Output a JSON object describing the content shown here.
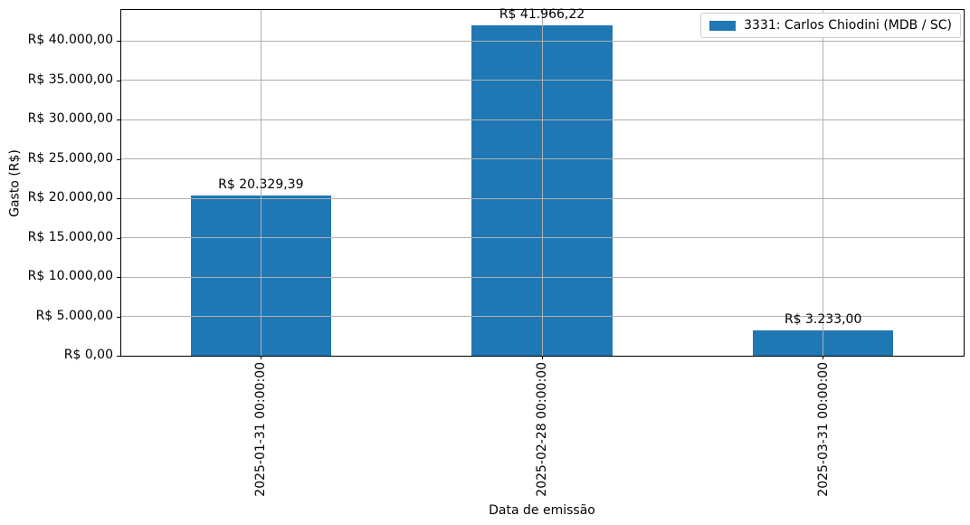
{
  "figure": {
    "background": "#ffffff"
  },
  "chart_data": {
    "type": "bar",
    "title": "",
    "xlabel": "Data de emissão",
    "ylabel": "Gasto (R$)",
    "categories": [
      "2025-01-31 00:00:00",
      "2025-02-28 00:00:00",
      "2025-03-31 00:00:00"
    ],
    "series": [
      {
        "name": "3331: Carlos Chiodini (MDB / SC)",
        "color": "#1f77b4",
        "values": [
          20329.39,
          41966.22,
          3233.0
        ]
      }
    ],
    "bar_value_labels": [
      "R$ 20.329,39",
      "R$ 41.966,22",
      "R$ 3.233,00"
    ],
    "y_ticks": [
      {
        "value": 0,
        "label": "R$ 0,00"
      },
      {
        "value": 5000,
        "label": "R$ 5.000,00"
      },
      {
        "value": 10000,
        "label": "R$ 10.000,00"
      },
      {
        "value": 15000,
        "label": "R$ 15.000,00"
      },
      {
        "value": 20000,
        "label": "R$ 20.000,00"
      },
      {
        "value": 25000,
        "label": "R$ 25.000,00"
      },
      {
        "value": 30000,
        "label": "R$ 30.000,00"
      },
      {
        "value": 35000,
        "label": "R$ 35.000,00"
      },
      {
        "value": 40000,
        "label": "R$ 40.000,00"
      }
    ],
    "ylim": [
      0,
      44064
    ],
    "grid": true,
    "bar_width_fraction": 0.5,
    "legend_position": "upper right",
    "colors": {
      "bar": "#1f77b4",
      "grid": "#b0b0b0",
      "spine": "#000000",
      "text": "#000000",
      "legend_border": "#cccccc"
    }
  }
}
